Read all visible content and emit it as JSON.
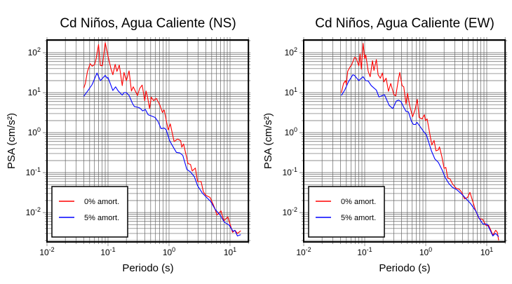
{
  "chart_data": [
    {
      "type": "line",
      "title": "Cd Niños, Agua Caliente (NS)",
      "xlabel": "Periodo (s)",
      "ylabel": "PSA (cm/s²)",
      "xscale": "log",
      "yscale": "log",
      "xlim": [
        0.01,
        20
      ],
      "ylim": [
        0.0018,
        208
      ],
      "grid": true,
      "legend_position": "bottom-left",
      "xticks": [
        {
          "base": "10",
          "exp": "-2",
          "value": 0.01
        },
        {
          "base": "10",
          "exp": "-1",
          "value": 0.1
        },
        {
          "base": "10",
          "exp": "0",
          "value": 1
        },
        {
          "base": "10",
          "exp": "1",
          "value": 10
        }
      ],
      "yticks": [
        {
          "base": "10",
          "exp": "2",
          "value": 100
        },
        {
          "base": "10",
          "exp": "1",
          "value": 10
        },
        {
          "base": "10",
          "exp": "0",
          "value": 1
        },
        {
          "base": "10",
          "exp": "-1",
          "value": 0.1
        },
        {
          "base": "10",
          "exp": "-2",
          "value": 0.01
        }
      ],
      "series": [
        {
          "name": "0% amort.",
          "color": "#ff0000",
          "x": [
            0.04,
            0.0425,
            0.046,
            0.051,
            0.055,
            0.0605,
            0.064,
            0.07,
            0.075,
            0.081,
            0.09,
            0.1,
            0.112,
            0.12,
            0.131,
            0.14,
            0.153,
            0.171,
            0.183,
            0.2,
            0.221,
            0.242,
            0.259,
            0.304,
            0.33,
            0.363,
            0.4,
            0.42,
            0.445,
            0.48,
            0.51,
            0.56,
            0.62,
            0.71,
            0.78,
            0.83,
            0.97,
            1.05,
            1.21,
            1.38,
            1.55,
            1.62,
            1.73,
            2.05,
            2.25,
            2.4,
            2.7,
            2.94,
            3.35,
            3.66,
            4.0,
            4.7,
            5.6,
            6.1,
            7.1,
            7.9,
            9.2,
            11,
            12,
            13.2,
            15
          ],
          "y": [
            13,
            17,
            34,
            53,
            46,
            51,
            71,
            160,
            48,
            47,
            178,
            82,
            39,
            28,
            51,
            34,
            49,
            15,
            32,
            20,
            35,
            11,
            14,
            8.5,
            12.7,
            15.5,
            6.3,
            11,
            7.7,
            4,
            7.7,
            6.3,
            7.2,
            4.8,
            3.2,
            3.7,
            1.17,
            1.65,
            0.6,
            0.69,
            0.63,
            0.43,
            0.52,
            0.167,
            0.16,
            0.11,
            0.13,
            0.06,
            0.06,
            0.033,
            0.027,
            0.024,
            0.013,
            0.0087,
            0.011,
            0.0062,
            0.0078,
            0.0032,
            0.0036,
            0.003,
            0.0035
          ]
        },
        {
          "name": "5% amort.",
          "color": "#0000ff",
          "x": [
            0.04,
            0.047,
            0.055,
            0.066,
            0.075,
            0.09,
            0.097,
            0.1,
            0.12,
            0.133,
            0.147,
            0.171,
            0.183,
            0.2,
            0.222,
            0.25,
            0.27,
            0.31,
            0.335,
            0.37,
            0.41,
            0.455,
            0.52,
            0.59,
            0.66,
            0.74,
            0.83,
            0.9,
            1.02,
            1.12,
            1.32,
            1.5,
            1.68,
            1.96,
            2.25,
            2.6,
            2.94,
            3.5,
            4.0,
            4.8,
            5.7,
            6.8,
            8.1,
            9.6,
            11.2,
            12,
            13.2,
            15
          ],
          "y": [
            8.1,
            11.3,
            16,
            31,
            20,
            27,
            23,
            24,
            11.3,
            14,
            11,
            8.7,
            10,
            10,
            8.5,
            5.5,
            4.5,
            4.3,
            4.1,
            3.5,
            3.8,
            2.8,
            2.6,
            2.4,
            1.9,
            1.26,
            1.3,
            1.17,
            0.64,
            0.49,
            0.32,
            0.31,
            0.27,
            0.12,
            0.104,
            0.079,
            0.047,
            0.031,
            0.025,
            0.019,
            0.012,
            0.0089,
            0.0057,
            0.0049,
            0.0034,
            0.0036,
            0.0026,
            0.0028
          ]
        }
      ]
    },
    {
      "type": "line",
      "title": "Cd Niños, Agua Caliente (EW)",
      "xlabel": "Periodo (s)",
      "ylabel": "PSA (cm/s²)",
      "xscale": "log",
      "yscale": "log",
      "xlim": [
        0.01,
        20
      ],
      "ylim": [
        0.0018,
        208
      ],
      "grid": true,
      "legend_position": "bottom-left",
      "xticks": [
        {
          "base": "10",
          "exp": "-2",
          "value": 0.01
        },
        {
          "base": "10",
          "exp": "-1",
          "value": 0.1
        },
        {
          "base": "10",
          "exp": "0",
          "value": 1
        },
        {
          "base": "10",
          "exp": "1",
          "value": 10
        }
      ],
      "yticks": [
        {
          "base": "10",
          "exp": "2",
          "value": 100
        },
        {
          "base": "10",
          "exp": "1",
          "value": 10
        },
        {
          "base": "10",
          "exp": "0",
          "value": 1
        },
        {
          "base": "10",
          "exp": "-1",
          "value": 0.1
        },
        {
          "base": "10",
          "exp": "-2",
          "value": 0.01
        }
      ],
      "series": [
        {
          "name": "0% amort.",
          "color": "#ff0000",
          "x": [
            0.0414,
            0.045,
            0.0485,
            0.05,
            0.0525,
            0.058,
            0.061,
            0.068,
            0.072,
            0.08,
            0.084,
            0.088,
            0.094,
            0.1,
            0.104,
            0.114,
            0.123,
            0.134,
            0.142,
            0.155,
            0.166,
            0.18,
            0.195,
            0.206,
            0.224,
            0.245,
            0.267,
            0.301,
            0.323,
            0.359,
            0.376,
            0.41,
            0.437,
            0.475,
            0.502,
            0.55,
            0.61,
            0.667,
            0.728,
            0.78,
            0.868,
            0.95,
            0.99,
            1.055,
            1.26,
            1.37,
            1.47,
            1.61,
            1.68,
            1.84,
            2.0,
            2.14,
            2.29,
            2.5,
            2.73,
            3.12,
            3.56,
            3.89,
            4.32,
            4.85,
            5.3,
            5.78,
            6.6,
            7.5,
            8.6,
            9.8,
            10.7,
            11.7,
            12.6,
            14,
            14.9,
            15.7
          ],
          "y": [
            10,
            17,
            20,
            16,
            34,
            45,
            49,
            76,
            74,
            47,
            93,
            39,
            171,
            71,
            88,
            34,
            25,
            63,
            36,
            67,
            28,
            23,
            31,
            18.6,
            23,
            10.8,
            17,
            8.9,
            8.3,
            23,
            32,
            15,
            14,
            5.2,
            9.7,
            4.5,
            2.5,
            3.7,
            6.8,
            2.4,
            2.2,
            2.8,
            2.0,
            2.2,
            0.49,
            0.64,
            0.35,
            0.37,
            0.44,
            0.25,
            0.128,
            0.135,
            0.074,
            0.07,
            0.053,
            0.041,
            0.038,
            0.032,
            0.022,
            0.024,
            0.032,
            0.021,
            0.011,
            0.0071,
            0.0067,
            0.0047,
            0.0048,
            0.0036,
            0.0027,
            0.0036,
            0.0032,
            0.002
          ]
        },
        {
          "name": "5% amort.",
          "color": "#0000ff",
          "x": [
            0.0414,
            0.047,
            0.054,
            0.064,
            0.068,
            0.08,
            0.088,
            0.094,
            0.104,
            0.114,
            0.128,
            0.155,
            0.171,
            0.211,
            0.252,
            0.288,
            0.33,
            0.359,
            0.393,
            0.43,
            0.475,
            0.52,
            0.585,
            0.63,
            0.68,
            0.72,
            0.83,
            0.95,
            1.02,
            1.24,
            1.41,
            1.61,
            1.84,
            2.1,
            2.4,
            2.73,
            3.25,
            3.89,
            4.6,
            5.4,
            6.6,
            7.5,
            8.6,
            10.2,
            11.2,
            12.6,
            13.8,
            15.7
          ],
          "y": [
            8.5,
            11.6,
            18.6,
            28,
            27,
            20,
            23,
            25,
            20,
            19.5,
            15,
            11.6,
            7.8,
            8.9,
            4.8,
            4,
            6.2,
            6.5,
            6.0,
            4.5,
            3.4,
            3.3,
            1.9,
            1.6,
            1.6,
            1.8,
            1.34,
            1.0,
            0.9,
            0.35,
            0.22,
            0.18,
            0.12,
            0.074,
            0.053,
            0.043,
            0.037,
            0.029,
            0.022,
            0.017,
            0.011,
            0.0073,
            0.0052,
            0.0051,
            0.0038,
            0.0026,
            0.003,
            0.0025
          ]
        }
      ]
    }
  ]
}
